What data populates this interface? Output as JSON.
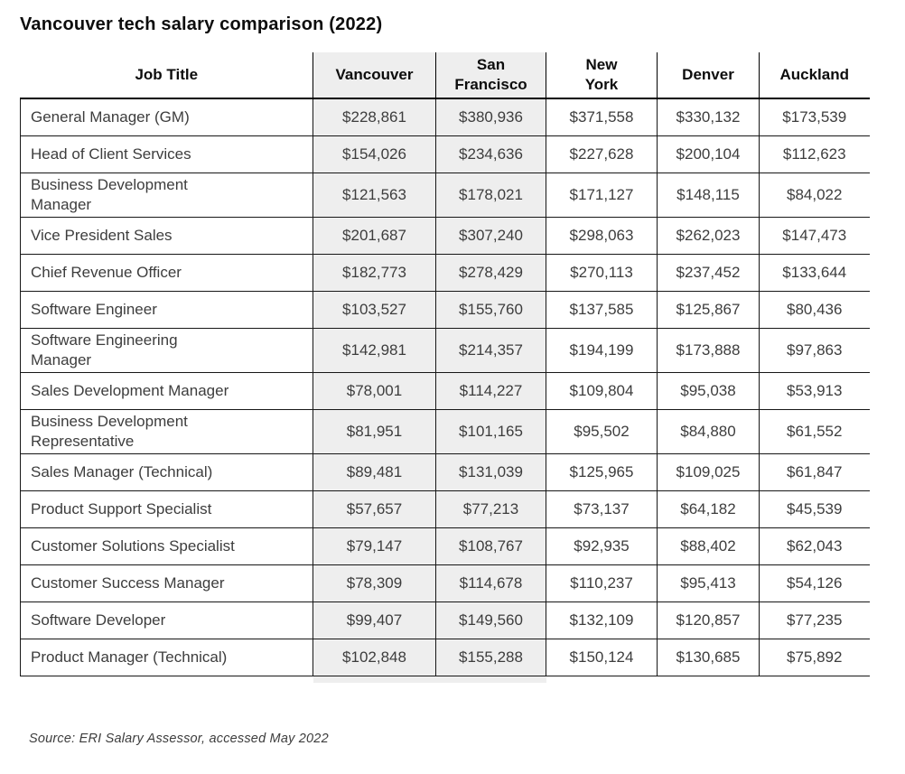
{
  "title": "Vancouver tech salary comparison (2022)",
  "source_note": "Source: ERI Salary Assessor, accessed May 2022",
  "colors": {
    "highlight_column_bg": "#eeeeee",
    "header_border": "#000000",
    "row_border": "#171717",
    "title_text": "#0d0d0d",
    "body_text": "#3d3d3d"
  },
  "chart_data": {
    "type": "table",
    "title": "Vancouver tech salary comparison (2022)",
    "source": "Source: ERI Salary Assessor, accessed May 2022",
    "columns": [
      "Job Title",
      "Vancouver",
      "San\nFrancisco",
      "New\nYork",
      "Denver",
      "Auckland"
    ],
    "highlighted_columns": [
      "Vancouver",
      "San Francisco"
    ],
    "rows": [
      {
        "job_title": "General Manager (GM)",
        "values": [
          "$228,861",
          "$380,936",
          "$371,558",
          "$330,132",
          "$173,539"
        ]
      },
      {
        "job_title": "Head of Client Services",
        "values": [
          "$154,026",
          "$234,636",
          "$227,628",
          "$200,104",
          "$112,623"
        ]
      },
      {
        "job_title": "Business Development\nManager",
        "values": [
          "$121,563",
          "$178,021",
          "$171,127",
          "$148,115",
          "$84,022"
        ]
      },
      {
        "job_title": "Vice President Sales",
        "values": [
          "$201,687",
          "$307,240",
          "$298,063",
          "$262,023",
          "$147,473"
        ]
      },
      {
        "job_title": "Chief Revenue Officer",
        "values": [
          "$182,773",
          "$278,429",
          "$270,113",
          "$237,452",
          "$133,644"
        ]
      },
      {
        "job_title": "Software Engineer",
        "values": [
          "$103,527",
          "$155,760",
          "$137,585",
          "$125,867",
          "$80,436"
        ]
      },
      {
        "job_title": "Software Engineering\nManager",
        "values": [
          "$142,981",
          "$214,357",
          "$194,199",
          "$173,888",
          "$97,863"
        ]
      },
      {
        "job_title": "Sales Development Manager",
        "values": [
          "$78,001",
          "$114,227",
          "$109,804",
          "$95,038",
          "$53,913"
        ]
      },
      {
        "job_title": "Business Development\nRepresentative",
        "values": [
          "$81,951",
          "$101,165",
          "$95,502",
          "$84,880",
          "$61,552"
        ]
      },
      {
        "job_title": "Sales Manager (Technical)",
        "values": [
          "$89,481",
          "$131,039",
          "$125,965",
          "$109,025",
          "$61,847"
        ]
      },
      {
        "job_title": "Product Support Specialist",
        "values": [
          "$57,657",
          "$77,213",
          "$73,137",
          "$64,182",
          "$45,539"
        ]
      },
      {
        "job_title": "Customer Solutions Specialist",
        "values": [
          "$79,147",
          "$108,767",
          "$92,935",
          "$88,402",
          "$62,043"
        ]
      },
      {
        "job_title": "Customer Success Manager",
        "values": [
          "$78,309",
          "$114,678",
          "$110,237",
          "$95,413",
          "$54,126"
        ]
      },
      {
        "job_title": "Software Developer",
        "values": [
          "$99,407",
          "$149,560",
          "$132,109",
          "$120,857",
          "$77,235"
        ]
      },
      {
        "job_title": "Product Manager (Technical)",
        "values": [
          "$102,848",
          "$155,288",
          "$150,124",
          "$130,685",
          "$75,892"
        ]
      }
    ]
  }
}
